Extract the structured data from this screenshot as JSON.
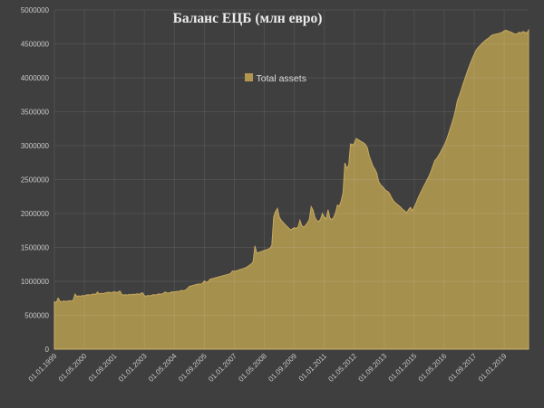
{
  "chart_data": {
    "type": "area",
    "title": "Баланс ЕЦБ (млн евро)",
    "background_color": "#3f3f3f",
    "gridline_color": "rgba(255,255,255,0.085)",
    "text_color": "#c9c9c9",
    "grid": true,
    "legend_position": "top-center-inside",
    "ylabel": "",
    "xlabel": "",
    "ylim": [
      0,
      5000000
    ],
    "y_ticks": [
      0,
      500000,
      1000000,
      1500000,
      2000000,
      2500000,
      3000000,
      3500000,
      4000000,
      4500000,
      5000000
    ],
    "x_tick_labels": [
      "01.01.1999",
      "01.05.2000",
      "01.09.2001",
      "01.01.2003",
      "01.05.2004",
      "01.09.2005",
      "01.01.2007",
      "01.05.2008",
      "01.09.2009",
      "01.01.2011",
      "01.05.2012",
      "01.09.2013",
      "01.01.2015",
      "01.05.2016",
      "01.09.2017",
      "01.01.2019"
    ],
    "x_tick_positions": [
      0,
      16,
      32,
      48,
      64,
      80,
      96,
      112,
      128,
      144,
      160,
      176,
      192,
      208,
      224,
      240
    ],
    "x_unit": "monthly samples from 01.01.1999 to 02.2020",
    "series_fill_color": "#a6904e",
    "series_edge_color": "#c6a95e",
    "legend_swatch_color": "#b2964f",
    "series": [
      {
        "name": "Total assets",
        "values": [
          697000,
          688000,
          754000,
          706000,
          699000,
          711000,
          703000,
          708000,
          715000,
          709000,
          721000,
          812000,
          778000,
          786000,
          781000,
          792000,
          787000,
          798000,
          804000,
          797000,
          808000,
          814000,
          809000,
          843000,
          816000,
          823000,
          818000,
          829000,
          836000,
          842000,
          831000,
          839000,
          846000,
          836000,
          843000,
          858000,
          806000,
          798000,
          804000,
          795000,
          809000,
          801000,
          812000,
          806000,
          816000,
          810000,
          818000,
          833000,
          789000,
          782000,
          793000,
          786000,
          797000,
          804000,
          798000,
          809000,
          816000,
          810000,
          821000,
          843000,
          832000,
          826000,
          839000,
          846000,
          840000,
          853000,
          848000,
          859000,
          866000,
          860000,
          873000,
          895000,
          926000,
          933000,
          941000,
          948000,
          956000,
          962000,
          957000,
          971000,
          1006000,
          986000,
          996000,
          1031000,
          1038000,
          1046000,
          1053000,
          1061000,
          1068000,
          1076000,
          1083000,
          1091000,
          1099000,
          1106000,
          1116000,
          1153000,
          1148000,
          1156000,
          1164000,
          1173000,
          1181000,
          1191000,
          1201000,
          1216000,
          1236000,
          1256000,
          1286000,
          1521000,
          1416000,
          1426000,
          1436000,
          1446000,
          1456000,
          1466000,
          1476000,
          1486000,
          1531000,
          1951000,
          2031000,
          2076000,
          1946000,
          1901000,
          1871000,
          1841000,
          1811000,
          1786000,
          1756000,
          1776000,
          1791000,
          1781000,
          1801000,
          1901000,
          1821000,
          1796000,
          1826000,
          1861000,
          1911000,
          2101000,
          2051000,
          1941000,
          1896000,
          1881000,
          1916000,
          2001000,
          1946000,
          1921000,
          2056000,
          1931000,
          1911000,
          1941000,
          2011000,
          2126000,
          2106000,
          2186000,
          2306000,
          2746000,
          2666000,
          2706000,
          3026000,
          3013000,
          3031000,
          3106000,
          3091000,
          3073000,
          3056000,
          3041000,
          3016000,
          2966000,
          2846000,
          2771000,
          2696000,
          2651000,
          2596000,
          2471000,
          2426000,
          2399000,
          2366000,
          2336000,
          2321000,
          2286000,
          2226000,
          2186000,
          2156000,
          2133000,
          2111000,
          2086000,
          2056000,
          2036000,
          2008000,
          2061000,
          2091000,
          2041000,
          2096000,
          2156000,
          2226000,
          2286000,
          2341000,
          2399000,
          2451000,
          2506000,
          2561000,
          2626000,
          2706000,
          2781000,
          2813000,
          2856000,
          2903000,
          2956000,
          3006000,
          3071000,
          3151000,
          3236000,
          3323000,
          3413000,
          3523000,
          3663000,
          3736000,
          3816000,
          3906000,
          3986000,
          4066000,
          4146000,
          4216000,
          4286000,
          4346000,
          4406000,
          4446000,
          4471000,
          4503000,
          4529000,
          4553000,
          4573000,
          4593000,
          4619000,
          4633000,
          4641000,
          4646000,
          4653000,
          4661000,
          4673000,
          4693000,
          4701000,
          4689000,
          4679000,
          4669000,
          4653000,
          4643000,
          4651000,
          4673000,
          4661000,
          4681000,
          4673000,
          4656000,
          4701000
        ]
      }
    ]
  }
}
